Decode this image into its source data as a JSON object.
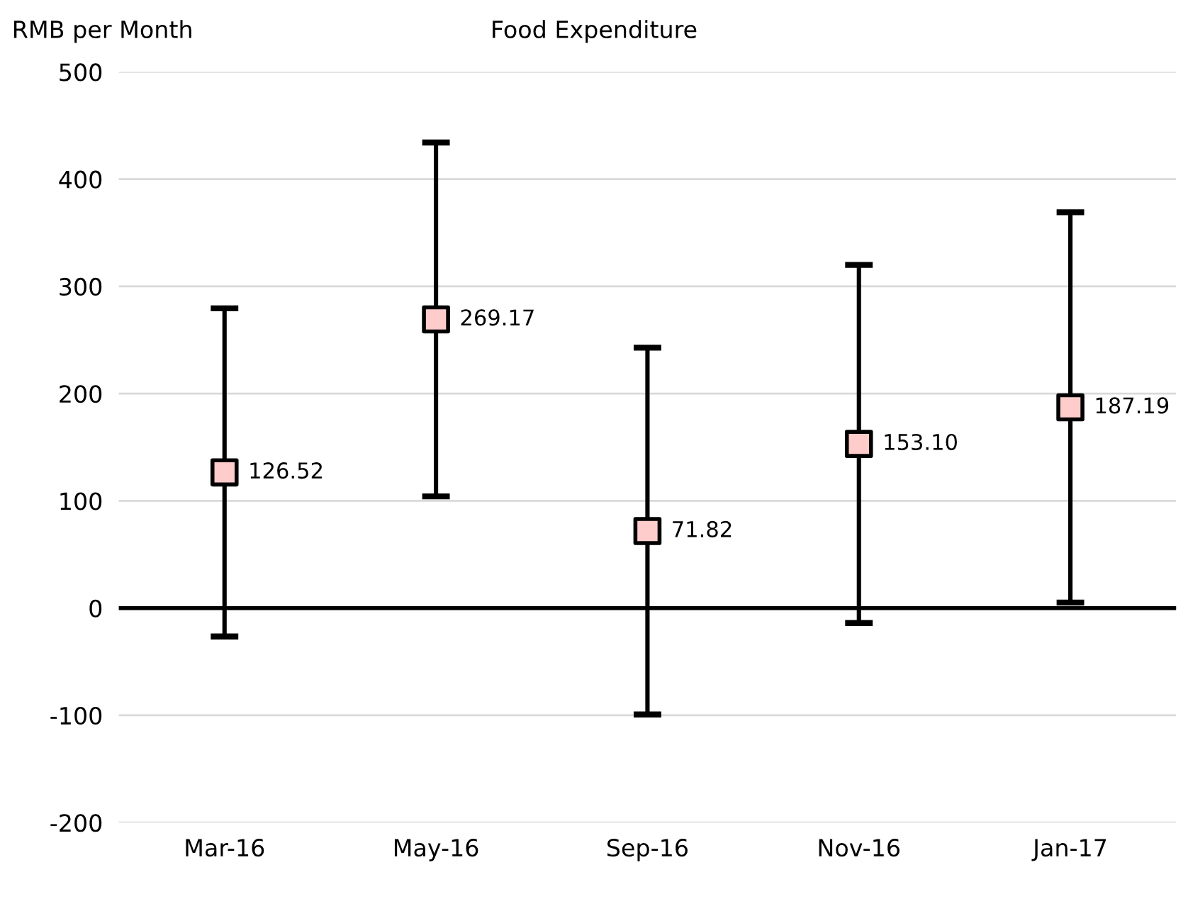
{
  "chart_data": {
    "type": "scatter",
    "title": "Food Expenditure",
    "ylabel": "RMB per Month",
    "categories": [
      "Mar-16",
      "May-16",
      "Sep-16",
      "Nov-16",
      "Jan-17"
    ],
    "values": [
      126.52,
      269.17,
      71.82,
      153.1,
      187.19
    ],
    "value_labels": [
      "126.52",
      "269.17",
      "71.82",
      "153.10",
      "187.19"
    ],
    "errors": [
      153,
      165,
      171,
      167,
      182
    ],
    "color": "#ffcccc",
    "marker": "square",
    "ylim": [
      -200,
      500
    ],
    "yticks": [
      -200,
      -100,
      0,
      100,
      200,
      300,
      400,
      500
    ],
    "grid": "y",
    "legend": false,
    "ref_lines": [
      {
        "axis": "y",
        "value": 0,
        "color": "#000000"
      }
    ]
  }
}
